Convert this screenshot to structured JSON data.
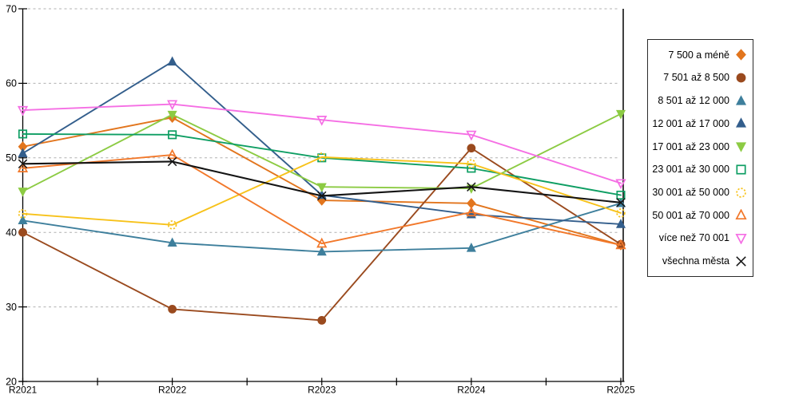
{
  "chart_data": {
    "type": "line",
    "title": "",
    "xlabel": "",
    "ylabel": "",
    "x_categories": [
      "R2021",
      "R2022",
      "R2023",
      "R2024",
      "R2025"
    ],
    "ylim": [
      20,
      70
    ],
    "y_ticks": [
      20,
      30,
      40,
      50,
      60,
      70
    ],
    "grid": "horizontal-dashed",
    "grid_color": "#b0b0b0",
    "axis_color": "#000000",
    "legend_position": "right",
    "series": [
      {
        "name": "7 500 a méně",
        "marker": "diamond",
        "style": "filled",
        "color": "#E2751D",
        "values": [
          51.5,
          55.4,
          44.3,
          43.9,
          38.3
        ]
      },
      {
        "name": "7 501 až 8 500",
        "marker": "circle",
        "style": "filled",
        "color": "#9A4A1E",
        "values": [
          40.0,
          29.7,
          28.2,
          51.3,
          38.4
        ]
      },
      {
        "name": "8 501 až 12 000",
        "marker": "triangle-up",
        "style": "filled",
        "color": "#3E7F9C",
        "values": [
          41.6,
          38.6,
          37.4,
          37.9,
          43.9
        ]
      },
      {
        "name": "12 001 až 17 000",
        "marker": "triangle-up",
        "style": "filled",
        "color": "#335E8C",
        "values": [
          50.6,
          62.9,
          45.0,
          42.4,
          41.1
        ]
      },
      {
        "name": "17 001 až 23 000",
        "marker": "triangle-down",
        "style": "filled",
        "color": "#8CCB43",
        "values": [
          45.5,
          55.8,
          46.1,
          45.9,
          55.9
        ]
      },
      {
        "name": "23 001 až 30 000",
        "marker": "square",
        "style": "open",
        "color": "#0E9E63",
        "values": [
          53.2,
          53.1,
          50.0,
          48.6,
          45.0
        ]
      },
      {
        "name": "30 001 až 50 000",
        "marker": "circle-dashed",
        "style": "open",
        "color": "#F7C21A",
        "values": [
          42.5,
          41.0,
          50.1,
          49.2,
          42.6
        ]
      },
      {
        "name": "50 001 až 70 000",
        "marker": "triangle-up",
        "style": "open",
        "color": "#F2782A",
        "values": [
          48.6,
          50.4,
          38.5,
          42.7,
          38.3
        ]
      },
      {
        "name": "více než 70 001",
        "marker": "triangle-down",
        "style": "open",
        "color": "#F56EE4",
        "values": [
          56.4,
          57.2,
          55.1,
          53.1,
          46.6
        ]
      },
      {
        "name": "všechna města",
        "marker": "x",
        "style": "line",
        "color": "#141414",
        "values": [
          49.2,
          49.5,
          44.9,
          46.1,
          44.0
        ]
      }
    ]
  }
}
